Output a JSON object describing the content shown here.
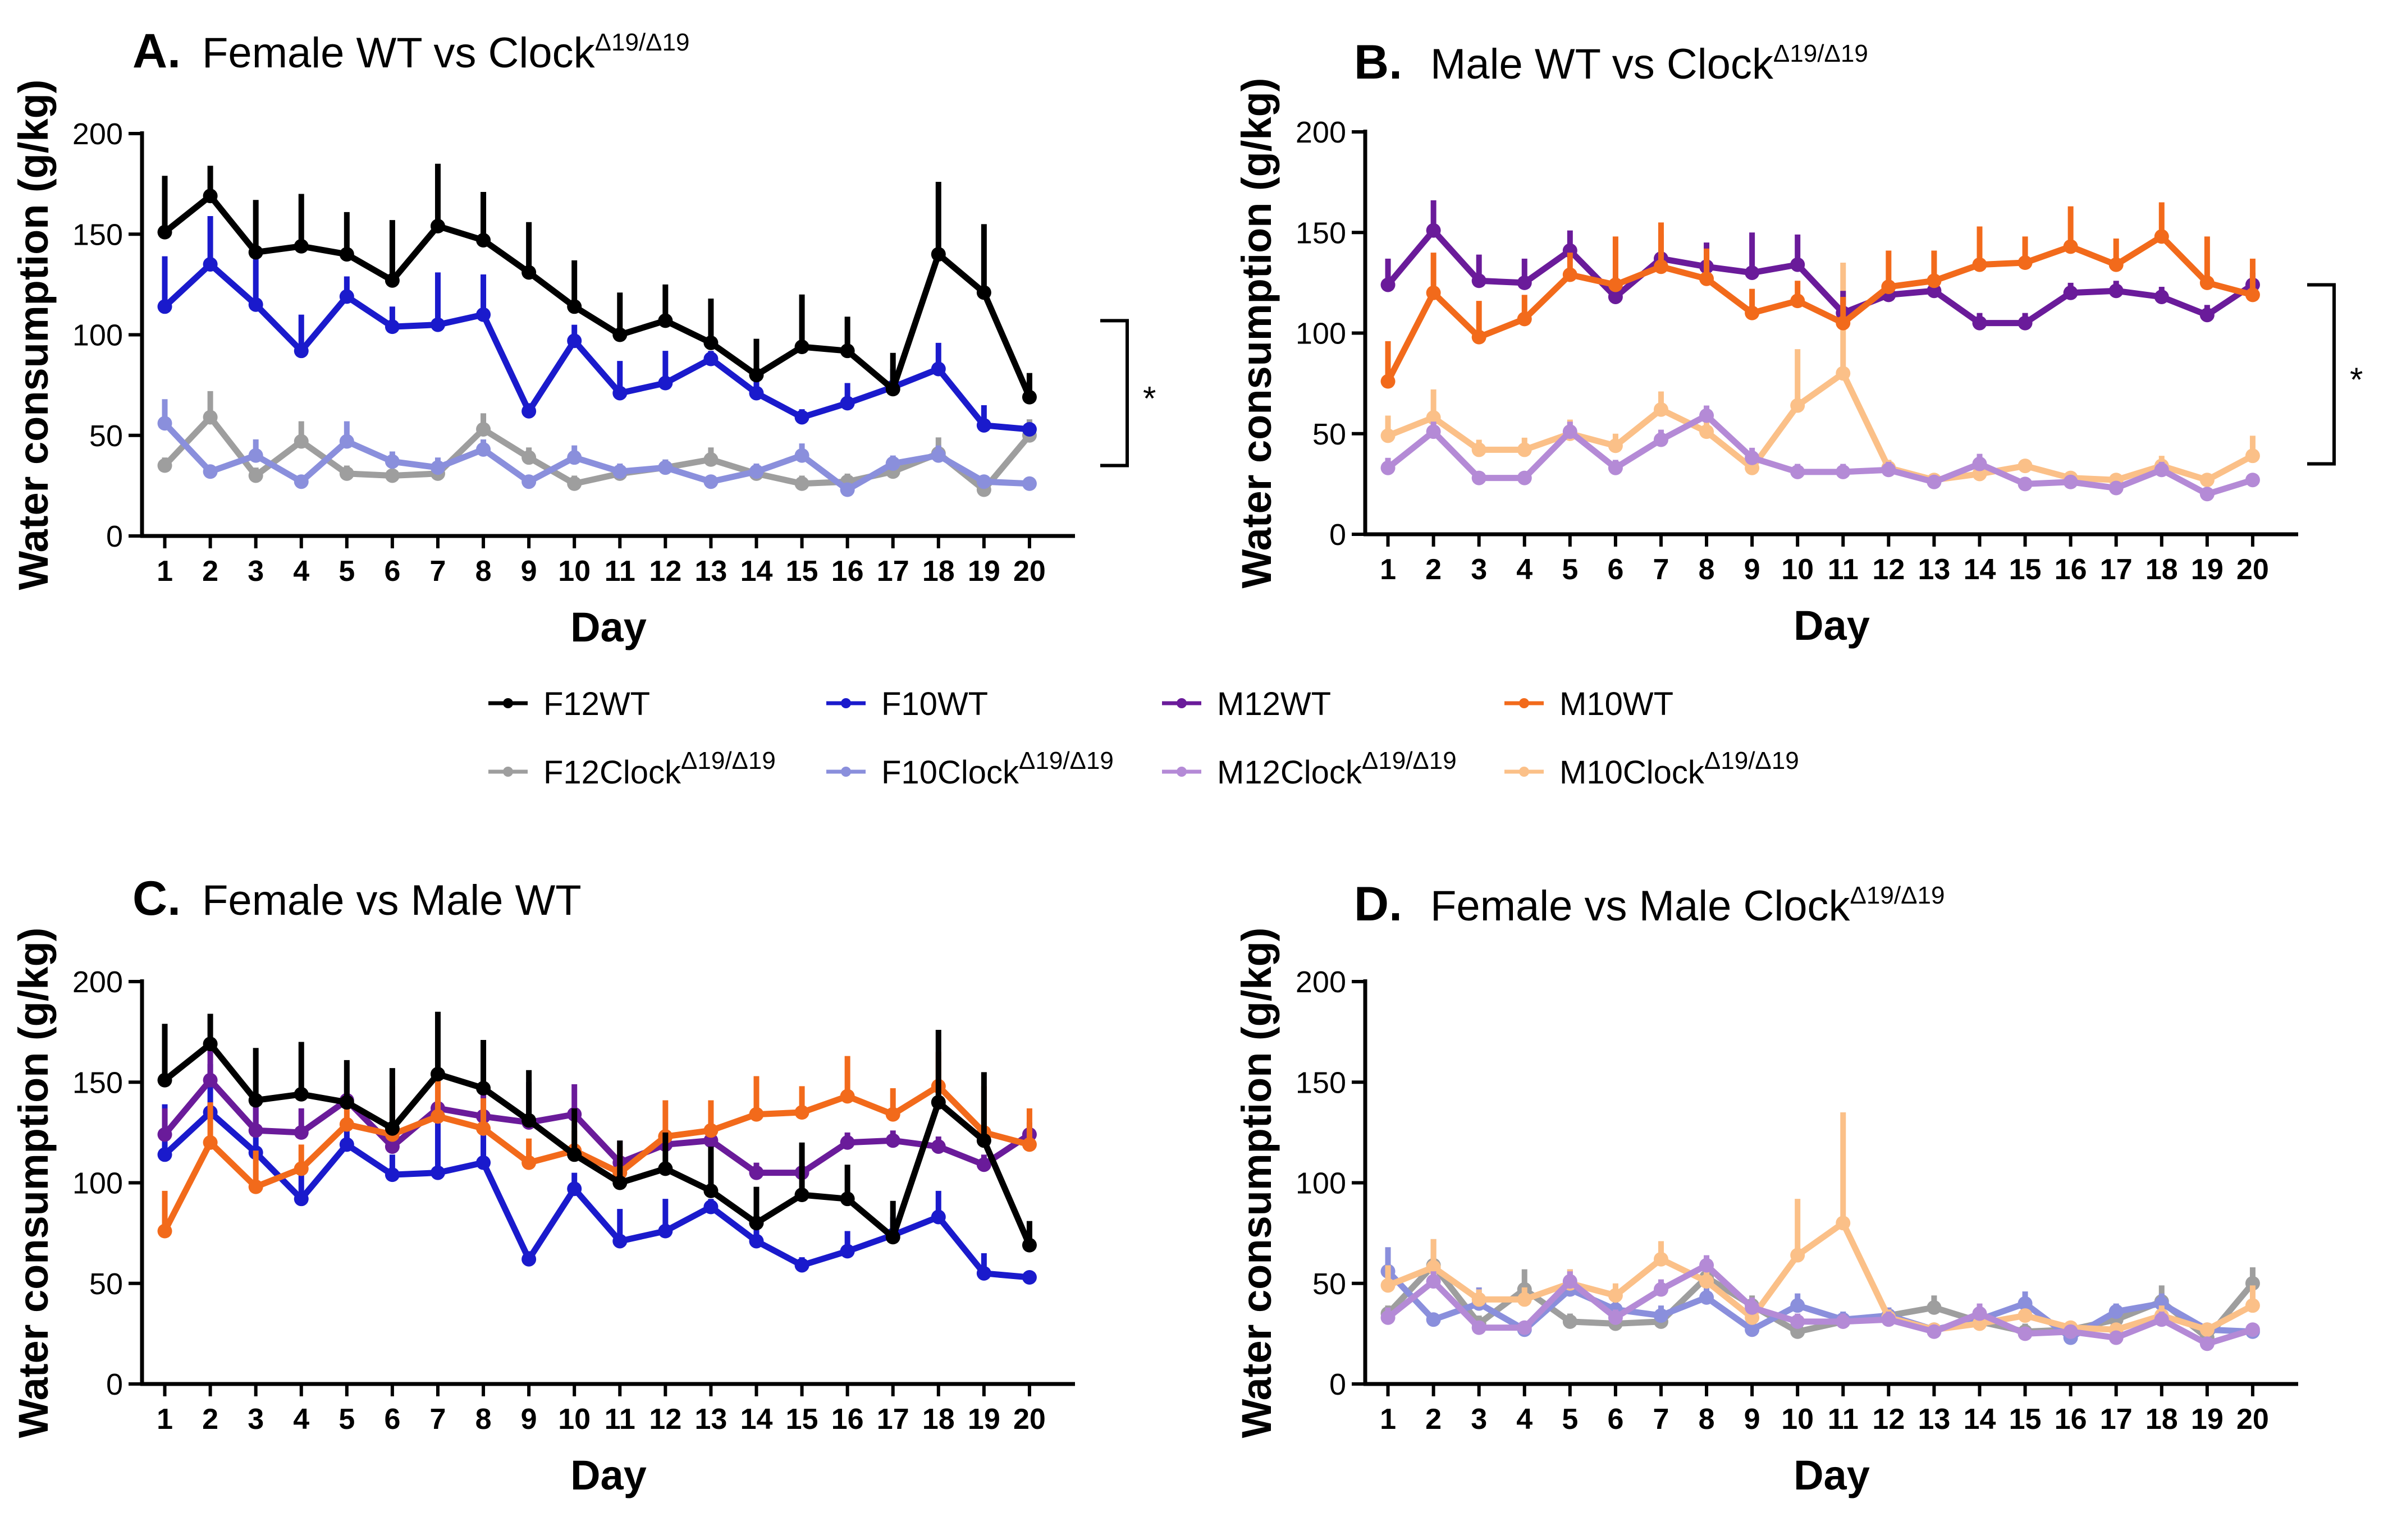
{
  "figure": {
    "legend": [
      {
        "key": "F12WT",
        "label": "F12WT",
        "sup": "",
        "color": "#000000"
      },
      {
        "key": "F10WT",
        "label": "F10WT",
        "sup": "",
        "color": "#1a1acc"
      },
      {
        "key": "M12WT",
        "label": "M12WT",
        "sup": "",
        "color": "#6a1b9a"
      },
      {
        "key": "M10WT",
        "label": "M10WT",
        "sup": "",
        "color": "#f26a1b"
      },
      {
        "key": "F12C",
        "label": "F12Clock",
        "sup": "Δ19/Δ19",
        "color": "#9e9e9e"
      },
      {
        "key": "F10C",
        "label": "F10Clock",
        "sup": "Δ19/Δ19",
        "color": "#8a8fdc"
      },
      {
        "key": "M12C",
        "label": "M12Clock",
        "sup": "Δ19/Δ19",
        "color": "#b48ad6"
      },
      {
        "key": "M10C",
        "label": "M10Clock",
        "sup": "Δ19/Δ19",
        "color": "#fbc088"
      }
    ],
    "significance": "*"
  },
  "chart_data": [
    {
      "type": "line",
      "panel": "A.",
      "title": "Female WT vs Clock",
      "title_sup": "Δ19/Δ19",
      "xlabel": "Day",
      "ylabel": "Water consumption (g/kg)",
      "x": [
        1,
        2,
        3,
        4,
        5,
        6,
        7,
        8,
        9,
        10,
        11,
        12,
        13,
        14,
        15,
        16,
        17,
        18,
        19,
        20
      ],
      "xticks": [
        "1",
        "2",
        "3",
        "4",
        "5",
        "6",
        "7",
        "8",
        "9",
        "10",
        "11",
        "12",
        "13",
        "14",
        "15",
        "16",
        "17",
        "18",
        "19",
        "20"
      ],
      "yticks": [
        "0",
        "50",
        "100",
        "150",
        "200"
      ],
      "ylim": [
        0,
        200
      ],
      "significance_bracket": {
        "from": 35,
        "to": 107,
        "label": "*"
      },
      "series": [
        {
          "key": "F12C",
          "values": [
            35,
            59,
            30,
            47,
            31,
            30,
            31,
            53,
            39,
            26,
            31,
            34,
            38,
            31,
            26,
            27,
            32,
            41,
            23,
            50
          ],
          "err": [
            4,
            13,
            4,
            10,
            4,
            3,
            4,
            8,
            5,
            4,
            4,
            4,
            6,
            4,
            4,
            4,
            5,
            8,
            6,
            8
          ]
        },
        {
          "key": "F10C",
          "values": [
            56,
            32,
            40,
            27,
            47,
            37,
            34,
            43,
            27,
            39,
            32,
            34,
            27,
            32,
            40,
            23,
            36,
            40,
            27,
            26
          ],
          "err": [
            12,
            3,
            8,
            3,
            10,
            5,
            5,
            5,
            3,
            6,
            4,
            4,
            3,
            4,
            6,
            3,
            4,
            5,
            3,
            3
          ]
        },
        {
          "key": "F10WT",
          "values": [
            114,
            135,
            115,
            92,
            119,
            104,
            105,
            110,
            62,
            97,
            71,
            76,
            88,
            71,
            59,
            66,
            74,
            83,
            55,
            53
          ],
          "err": [
            25,
            24,
            25,
            18,
            10,
            10,
            26,
            20,
            4,
            8,
            16,
            16,
            4,
            10,
            4,
            10,
            9,
            13,
            10,
            3
          ]
        },
        {
          "key": "F12WT",
          "values": [
            151,
            169,
            141,
            144,
            140,
            127,
            154,
            147,
            131,
            114,
            100,
            107,
            96,
            80,
            94,
            92,
            73,
            140,
            121,
            69
          ],
          "err": [
            28,
            15,
            26,
            26,
            21,
            30,
            31,
            24,
            25,
            23,
            21,
            18,
            22,
            18,
            26,
            17,
            18,
            36,
            34,
            12
          ]
        }
      ]
    },
    {
      "type": "line",
      "panel": "B.",
      "title": "Male WT vs Clock",
      "title_sup": "Δ19/Δ19",
      "xlabel": "Day",
      "ylabel": "Water consumption (g/kg)",
      "x": [
        1,
        2,
        3,
        4,
        5,
        6,
        7,
        8,
        9,
        10,
        11,
        12,
        13,
        14,
        15,
        16,
        17,
        18,
        19,
        20
      ],
      "xticks": [
        "1",
        "2",
        "3",
        "4",
        "5",
        "6",
        "7",
        "8",
        "9",
        "10",
        "11",
        "12",
        "13",
        "14",
        "15",
        "16",
        "17",
        "18",
        "19",
        "20"
      ],
      "yticks": [
        "0",
        "50",
        "100",
        "150",
        "200"
      ],
      "ylim": [
        0,
        200
      ],
      "significance_bracket": {
        "from": 35,
        "to": 124,
        "label": "*"
      },
      "series": [
        {
          "key": "M10C",
          "values": [
            49,
            58,
            42,
            42,
            50,
            44,
            62,
            51,
            33,
            64,
            80,
            33,
            27,
            30,
            34,
            28,
            27,
            34,
            27,
            39
          ],
          "err": [
            10,
            14,
            5,
            6,
            7,
            6,
            9,
            6,
            4,
            28,
            55,
            4,
            3,
            4,
            3,
            3,
            3,
            5,
            3,
            10
          ]
        },
        {
          "key": "M12C",
          "values": [
            33,
            51,
            28,
            28,
            51,
            33,
            47,
            59,
            38,
            31,
            31,
            32,
            26,
            35,
            25,
            26,
            23,
            32,
            20,
            27
          ],
          "err": [
            5,
            5,
            3,
            3,
            5,
            4,
            5,
            5,
            5,
            4,
            4,
            4,
            3,
            5,
            3,
            3,
            3,
            4,
            3,
            3
          ]
        },
        {
          "key": "M12WT",
          "values": [
            124,
            151,
            126,
            125,
            141,
            118,
            137,
            133,
            130,
            134,
            110,
            119,
            121,
            105,
            105,
            120,
            121,
            118,
            109,
            124
          ],
          "err": [
            13,
            15,
            13,
            12,
            10,
            10,
            12,
            12,
            20,
            15,
            11,
            6,
            5,
            5,
            5,
            5,
            5,
            5,
            5,
            6
          ]
        },
        {
          "key": "M10WT",
          "values": [
            76,
            120,
            98,
            107,
            129,
            124,
            133,
            127,
            110,
            116,
            105,
            123,
            126,
            134,
            135,
            143,
            134,
            148,
            125,
            119
          ],
          "err": [
            20,
            20,
            18,
            12,
            11,
            24,
            22,
            15,
            12,
            10,
            13,
            18,
            15,
            19,
            13,
            20,
            13,
            17,
            23,
            18
          ]
        }
      ]
    },
    {
      "type": "line",
      "panel": "C.",
      "title": "Female vs Male WT",
      "title_sup": "",
      "xlabel": "Day",
      "ylabel": "Water consumption (g/kg)",
      "x": [
        1,
        2,
        3,
        4,
        5,
        6,
        7,
        8,
        9,
        10,
        11,
        12,
        13,
        14,
        15,
        16,
        17,
        18,
        19,
        20
      ],
      "xticks": [
        "1",
        "2",
        "3",
        "4",
        "5",
        "6",
        "7",
        "8",
        "9",
        "10",
        "11",
        "12",
        "13",
        "14",
        "15",
        "16",
        "17",
        "18",
        "19",
        "20"
      ],
      "yticks": [
        "0",
        "50",
        "100",
        "150",
        "200"
      ],
      "ylim": [
        0,
        200
      ],
      "series": [
        {
          "key": "F10WT",
          "values": [
            114,
            135,
            115,
            92,
            119,
            104,
            105,
            110,
            62,
            97,
            71,
            76,
            88,
            71,
            59,
            66,
            74,
            83,
            55,
            53
          ],
          "err": [
            25,
            24,
            25,
            18,
            10,
            10,
            26,
            20,
            4,
            8,
            16,
            16,
            4,
            10,
            4,
            10,
            9,
            13,
            10,
            3
          ]
        },
        {
          "key": "M12WT",
          "values": [
            124,
            151,
            126,
            125,
            141,
            118,
            137,
            133,
            130,
            134,
            110,
            119,
            121,
            105,
            105,
            120,
            121,
            118,
            109,
            124
          ],
          "err": [
            13,
            15,
            13,
            12,
            10,
            10,
            12,
            12,
            20,
            15,
            11,
            6,
            5,
            5,
            5,
            5,
            5,
            5,
            5,
            6
          ]
        },
        {
          "key": "M10WT",
          "values": [
            76,
            120,
            98,
            107,
            129,
            124,
            133,
            127,
            110,
            116,
            105,
            123,
            126,
            134,
            135,
            143,
            134,
            148,
            125,
            119
          ],
          "err": [
            20,
            20,
            18,
            12,
            11,
            24,
            22,
            15,
            12,
            10,
            13,
            18,
            15,
            19,
            13,
            20,
            13,
            17,
            23,
            18
          ]
        },
        {
          "key": "F12WT",
          "values": [
            151,
            169,
            141,
            144,
            140,
            127,
            154,
            147,
            131,
            114,
            100,
            107,
            96,
            80,
            94,
            92,
            73,
            140,
            121,
            69
          ],
          "err": [
            28,
            15,
            26,
            26,
            21,
            30,
            31,
            24,
            25,
            23,
            21,
            18,
            22,
            18,
            26,
            17,
            18,
            36,
            34,
            12
          ]
        }
      ]
    },
    {
      "type": "line",
      "panel": "D.",
      "title": "Female vs Male Clock",
      "title_sup": "Δ19/Δ19",
      "xlabel": "Day",
      "ylabel": "Water consumption (g/kg)",
      "x": [
        1,
        2,
        3,
        4,
        5,
        6,
        7,
        8,
        9,
        10,
        11,
        12,
        13,
        14,
        15,
        16,
        17,
        18,
        19,
        20
      ],
      "xticks": [
        "1",
        "2",
        "3",
        "4",
        "5",
        "6",
        "7",
        "8",
        "9",
        "10",
        "11",
        "12",
        "13",
        "14",
        "15",
        "16",
        "17",
        "18",
        "19",
        "20"
      ],
      "yticks": [
        "0",
        "50",
        "100",
        "150",
        "200"
      ],
      "ylim": [
        0,
        200
      ],
      "series": [
        {
          "key": "F12C",
          "values": [
            35,
            59,
            30,
            47,
            31,
            30,
            31,
            53,
            39,
            26,
            31,
            34,
            38,
            31,
            26,
            27,
            32,
            41,
            23,
            50
          ],
          "err": [
            4,
            13,
            4,
            10,
            4,
            3,
            4,
            8,
            5,
            4,
            4,
            4,
            6,
            4,
            4,
            4,
            5,
            8,
            6,
            8
          ]
        },
        {
          "key": "F10C",
          "values": [
            56,
            32,
            40,
            27,
            47,
            37,
            34,
            43,
            27,
            39,
            32,
            34,
            27,
            32,
            40,
            23,
            36,
            40,
            27,
            26
          ],
          "err": [
            12,
            3,
            8,
            3,
            10,
            5,
            5,
            5,
            3,
            6,
            4,
            4,
            3,
            4,
            6,
            3,
            4,
            5,
            3,
            3
          ]
        },
        {
          "key": "M10C",
          "values": [
            49,
            58,
            42,
            42,
            50,
            44,
            62,
            51,
            33,
            64,
            80,
            33,
            27,
            30,
            34,
            28,
            27,
            34,
            27,
            39
          ],
          "err": [
            10,
            14,
            5,
            6,
            7,
            6,
            9,
            6,
            4,
            28,
            55,
            4,
            3,
            4,
            3,
            3,
            3,
            5,
            3,
            10
          ]
        },
        {
          "key": "M12C",
          "values": [
            33,
            51,
            28,
            28,
            51,
            33,
            47,
            59,
            38,
            31,
            31,
            32,
            26,
            35,
            25,
            26,
            23,
            32,
            20,
            27
          ],
          "err": [
            5,
            5,
            3,
            3,
            5,
            4,
            5,
            5,
            5,
            4,
            4,
            4,
            3,
            5,
            3,
            3,
            3,
            4,
            3,
            3
          ]
        }
      ]
    }
  ]
}
